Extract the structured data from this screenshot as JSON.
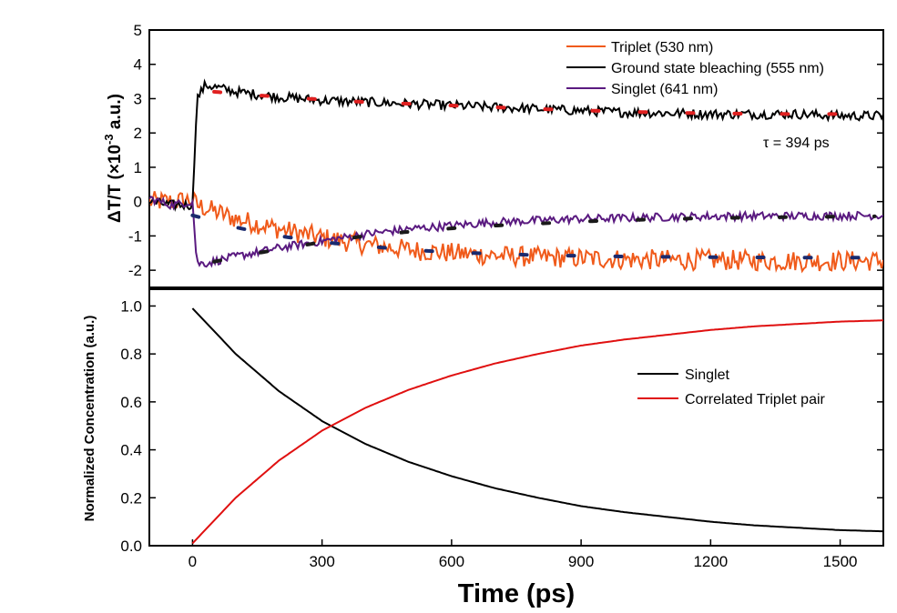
{
  "chart_data": [
    {
      "type": "line",
      "panel": "top",
      "title": "",
      "ylabel": "ΔT/T (×10⁻³ a.u.)",
      "ylabel_parts": {
        "main": "ΔT/T (×10",
        "exp": "-3",
        "tail": " a.u.)"
      },
      "xlim": [
        -100,
        1600
      ],
      "ylim": [
        -2.5,
        5
      ],
      "yticks": [
        -2,
        -1,
        0,
        1,
        2,
        3,
        4,
        5
      ],
      "annotation": "τ = 394 ps",
      "legend": [
        "Triplet (530 nm)",
        "Ground state bleaching (555 nm)",
        "Singlet (641 nm)"
      ],
      "legend_position": "top-right",
      "series": [
        {
          "name": "Triplet (530 nm)",
          "color": "#f05a1a",
          "x": [
            -100,
            -50,
            0,
            10,
            100,
            200,
            300,
            400,
            500,
            600,
            700,
            800,
            900,
            1000,
            1100,
            1200,
            1300,
            1400,
            1500,
            1600
          ],
          "values": [
            0.0,
            0.0,
            0.05,
            -0.1,
            -0.5,
            -0.8,
            -1.05,
            -1.25,
            -1.4,
            -1.5,
            -1.57,
            -1.62,
            -1.65,
            -1.68,
            -1.7,
            -1.7,
            -1.72,
            -1.73,
            -1.73,
            -1.73
          ],
          "noise": 0.3
        },
        {
          "name": "Ground state bleaching (555 nm)",
          "color": "#000000",
          "x": [
            -100,
            -50,
            0,
            10,
            30,
            100,
            200,
            300,
            400,
            500,
            600,
            700,
            800,
            900,
            1000,
            1100,
            1200,
            1300,
            1400,
            1500,
            1600
          ],
          "values": [
            0.0,
            -0.1,
            -0.1,
            3.0,
            3.4,
            3.2,
            3.05,
            2.95,
            2.9,
            2.85,
            2.8,
            2.75,
            2.7,
            2.65,
            2.6,
            2.58,
            2.55,
            2.55,
            2.55,
            2.5,
            2.5
          ],
          "noise": 0.14
        },
        {
          "name": "Singlet (641 nm)",
          "color": "#5a1a80",
          "x": [
            -100,
            -50,
            0,
            10,
            30,
            100,
            200,
            300,
            400,
            500,
            600,
            700,
            800,
            900,
            1000,
            1100,
            1200,
            1300,
            1400,
            1500,
            1600
          ],
          "values": [
            0.1,
            -0.1,
            0.0,
            -1.8,
            -1.8,
            -1.6,
            -1.35,
            -1.15,
            -0.95,
            -0.8,
            -0.7,
            -0.6,
            -0.55,
            -0.5,
            -0.48,
            -0.45,
            -0.43,
            -0.42,
            -0.42,
            -0.41,
            -0.4
          ],
          "noise": 0.12
        }
      ],
      "fits": [
        {
          "color": "#e02020",
          "x": [
            50,
            200,
            400,
            600,
            800,
            1000,
            1200,
            1400,
            1580
          ],
          "values": [
            3.2,
            3.05,
            2.9,
            2.8,
            2.7,
            2.62,
            2.57,
            2.55,
            2.55
          ]
        },
        {
          "color": "#1a2a6e",
          "x": [
            0,
            100,
            200,
            300,
            400,
            500,
            600,
            800,
            1000,
            1200,
            1400,
            1580
          ],
          "values": [
            -0.4,
            -0.75,
            -1.0,
            -1.18,
            -1.3,
            -1.4,
            -1.48,
            -1.56,
            -1.6,
            -1.62,
            -1.63,
            -1.63
          ]
        },
        {
          "color": "#1a1a1a",
          "x": [
            50,
            150,
            300,
            400,
            500,
            600,
            700,
            800,
            900,
            1000,
            1200,
            1400,
            1580
          ],
          "values": [
            -1.75,
            -1.5,
            -1.18,
            -1.0,
            -0.88,
            -0.78,
            -0.7,
            -0.64,
            -0.58,
            -0.54,
            -0.48,
            -0.45,
            -0.43
          ]
        }
      ]
    },
    {
      "type": "line",
      "panel": "bottom",
      "title": "",
      "xlabel": "Time (ps)",
      "ylabel": "Normalized Concentration (a.u.)",
      "xlim": [
        -100,
        1600
      ],
      "ylim": [
        0,
        1.07
      ],
      "xticks": [
        0,
        300,
        600,
        900,
        1200,
        1500
      ],
      "yticks": [
        0.0,
        0.2,
        0.4,
        0.6,
        0.8,
        1.0
      ],
      "ytick_labels": [
        "0.0",
        "0.2",
        "0.4",
        "0.6",
        "0.8",
        "1.0"
      ],
      "legend": [
        "Singlet",
        "Correlated Triplet pair"
      ],
      "legend_position": "center-right",
      "series": [
        {
          "name": "Singlet",
          "color": "#000000",
          "x": [
            0,
            100,
            200,
            300,
            400,
            500,
            600,
            700,
            800,
            900,
            1000,
            1100,
            1200,
            1300,
            1400,
            1500,
            1600
          ],
          "values": [
            0.99,
            0.8,
            0.645,
            0.52,
            0.425,
            0.35,
            0.29,
            0.24,
            0.2,
            0.165,
            0.14,
            0.12,
            0.1,
            0.085,
            0.075,
            0.065,
            0.06
          ]
        },
        {
          "name": "Correlated Triplet pair",
          "color": "#e01010",
          "x": [
            0,
            100,
            200,
            300,
            400,
            500,
            600,
            700,
            800,
            900,
            1000,
            1100,
            1200,
            1300,
            1400,
            1500,
            1600
          ],
          "values": [
            0.01,
            0.2,
            0.355,
            0.48,
            0.575,
            0.65,
            0.71,
            0.76,
            0.8,
            0.835,
            0.86,
            0.88,
            0.9,
            0.915,
            0.925,
            0.935,
            0.94
          ]
        }
      ]
    }
  ]
}
